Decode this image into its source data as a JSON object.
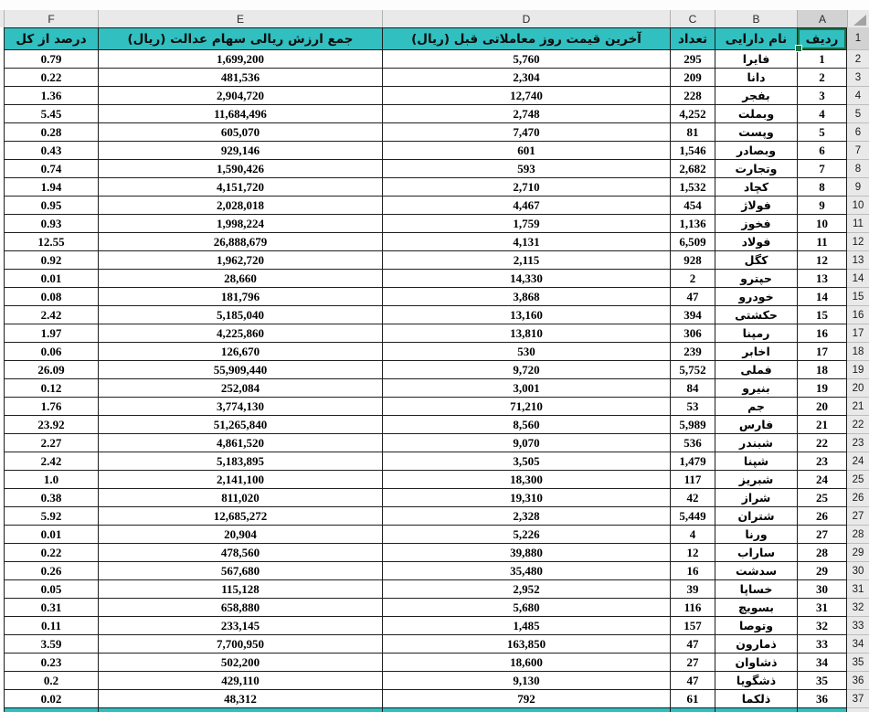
{
  "sheet": {
    "selected_cell": "A1",
    "column_letters": [
      "F",
      "E",
      "D",
      "C",
      "B",
      "A"
    ],
    "icons": {
      "select_all": "corner-triangle"
    },
    "colors": {
      "header_fill": "#31bfc0",
      "selection_border": "#1e7145",
      "grid_line": "#1f1f1f",
      "chrome_bg": "#e9e9e9",
      "chrome_selected_bg": "#d2d2d2"
    },
    "headers": {
      "rank": "ردیف",
      "asset_name": "نام دارایی",
      "count": "تعداد",
      "last_price": "آخرین قیمت روز معاملاتی قبل (ریال)",
      "total_value": "جمع ارزش ریالی سهام عدالت (ریال)",
      "percent": "درصد از کل"
    },
    "first_row_number": "1",
    "rows": [
      {
        "rank": 1,
        "name": "فایرا",
        "count": "295",
        "price": "5,760",
        "value": "1,699,200",
        "percent": "0.79"
      },
      {
        "rank": 2,
        "name": "دانا",
        "count": "209",
        "price": "2,304",
        "value": "481,536",
        "percent": "0.22"
      },
      {
        "rank": 3,
        "name": "بفجر",
        "count": "228",
        "price": "12,740",
        "value": "2,904,720",
        "percent": "1.36"
      },
      {
        "rank": 4,
        "name": "وبملت",
        "count": "4,252",
        "price": "2,748",
        "value": "11,684,496",
        "percent": "5.45"
      },
      {
        "rank": 5,
        "name": "وپست",
        "count": "81",
        "price": "7,470",
        "value": "605,070",
        "percent": "0.28"
      },
      {
        "rank": 6,
        "name": "وبصادر",
        "count": "1,546",
        "price": "601",
        "value": "929,146",
        "percent": "0.43"
      },
      {
        "rank": 7,
        "name": "وتجارت",
        "count": "2,682",
        "price": "593",
        "value": "1,590,426",
        "percent": "0.74"
      },
      {
        "rank": 8,
        "name": "کچاد",
        "count": "1,532",
        "price": "2,710",
        "value": "4,151,720",
        "percent": "1.94"
      },
      {
        "rank": 9,
        "name": "فولاژ",
        "count": "454",
        "price": "4,467",
        "value": "2,028,018",
        "percent": "0.95"
      },
      {
        "rank": 10,
        "name": "فخوز",
        "count": "1,136",
        "price": "1,759",
        "value": "1,998,224",
        "percent": "0.93"
      },
      {
        "rank": 11,
        "name": "فولاد",
        "count": "6,509",
        "price": "4,131",
        "value": "26,888,679",
        "percent": "12.55"
      },
      {
        "rank": 12,
        "name": "کگل",
        "count": "928",
        "price": "2,115",
        "value": "1,962,720",
        "percent": "0.92"
      },
      {
        "rank": 13,
        "name": "حپترو",
        "count": "2",
        "price": "14,330",
        "value": "28,660",
        "percent": "0.01"
      },
      {
        "rank": 14,
        "name": "خودرو",
        "count": "47",
        "price": "3,868",
        "value": "181,796",
        "percent": "0.08"
      },
      {
        "rank": 15,
        "name": "حکشتی",
        "count": "394",
        "price": "13,160",
        "value": "5,185,040",
        "percent": "2.42"
      },
      {
        "rank": 16,
        "name": "رمپنا",
        "count": "306",
        "price": "13,810",
        "value": "4,225,860",
        "percent": "1.97"
      },
      {
        "rank": 17,
        "name": "اخابر",
        "count": "239",
        "price": "530",
        "value": "126,670",
        "percent": "0.06"
      },
      {
        "rank": 18,
        "name": "فملی",
        "count": "5,752",
        "price": "9,720",
        "value": "55,909,440",
        "percent": "26.09"
      },
      {
        "rank": 19,
        "name": "بنیرو",
        "count": "84",
        "price": "3,001",
        "value": "252,084",
        "percent": "0.12"
      },
      {
        "rank": 20,
        "name": "جم",
        "count": "53",
        "price": "71,210",
        "value": "3,774,130",
        "percent": "1.76"
      },
      {
        "rank": 21,
        "name": "فارس",
        "count": "5,989",
        "price": "8,560",
        "value": "51,265,840",
        "percent": "23.92"
      },
      {
        "rank": 22,
        "name": "شبندر",
        "count": "536",
        "price": "9,070",
        "value": "4,861,520",
        "percent": "2.27"
      },
      {
        "rank": 23,
        "name": "شپنا",
        "count": "1,479",
        "price": "3,505",
        "value": "5,183,895",
        "percent": "2.42"
      },
      {
        "rank": 24,
        "name": "شبریز",
        "count": "117",
        "price": "18,300",
        "value": "2,141,100",
        "percent": "1.0"
      },
      {
        "rank": 25,
        "name": "شراز",
        "count": "42",
        "price": "19,310",
        "value": "811,020",
        "percent": "0.38"
      },
      {
        "rank": 26,
        "name": "شتران",
        "count": "5,449",
        "price": "2,328",
        "value": "12,685,272",
        "percent": "5.92"
      },
      {
        "rank": 27,
        "name": "ورنا",
        "count": "4",
        "price": "5,226",
        "value": "20,904",
        "percent": "0.01"
      },
      {
        "rank": 28,
        "name": "ساراب",
        "count": "12",
        "price": "39,880",
        "value": "478,560",
        "percent": "0.22"
      },
      {
        "rank": 29,
        "name": "سدشت",
        "count": "16",
        "price": "35,480",
        "value": "567,680",
        "percent": "0.26"
      },
      {
        "rank": 30,
        "name": "خساپا",
        "count": "39",
        "price": "2,952",
        "value": "115,128",
        "percent": "0.05"
      },
      {
        "rank": 31,
        "name": "بسویچ",
        "count": "116",
        "price": "5,680",
        "value": "658,880",
        "percent": "0.31"
      },
      {
        "rank": 32,
        "name": "وتوصا",
        "count": "157",
        "price": "1,485",
        "value": "233,145",
        "percent": "0.11"
      },
      {
        "rank": 33,
        "name": "ذمارون",
        "count": "47",
        "price": "163,850",
        "value": "7,700,950",
        "percent": "3.59"
      },
      {
        "rank": 34,
        "name": "ذشاوان",
        "count": "27",
        "price": "18,600",
        "value": "502,200",
        "percent": "0.23"
      },
      {
        "rank": 35,
        "name": "ذشگویا",
        "count": "47",
        "price": "9,130",
        "value": "429,110",
        "percent": "0.2"
      },
      {
        "rank": 36,
        "name": "ذلکما",
        "count": "61",
        "price": "792",
        "value": "48,312",
        "percent": "0.02"
      }
    ]
  }
}
